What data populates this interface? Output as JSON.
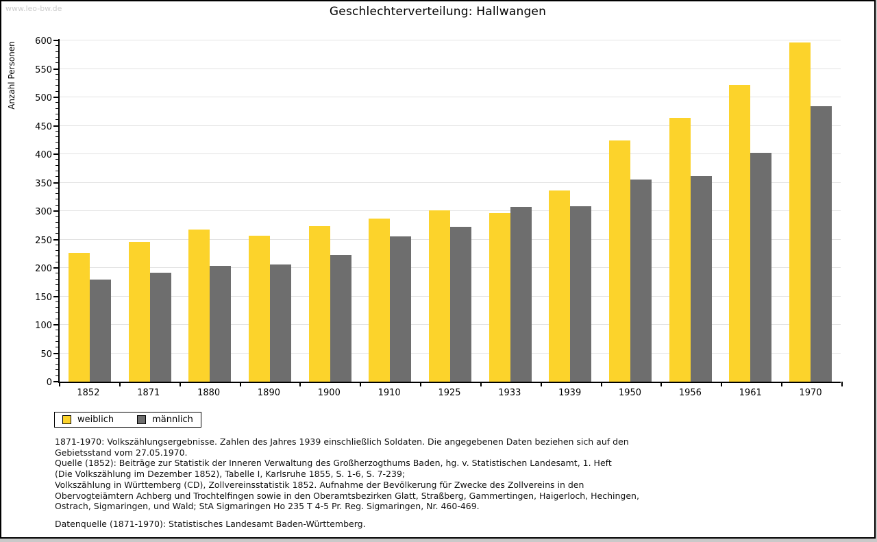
{
  "watermark": "www.leo-bw.de",
  "chart_data": {
    "type": "bar",
    "title": "Geschlechterverteilung: Hallwangen",
    "ylabel": "Anzahl Personen",
    "xlabel": "",
    "ylim": [
      0,
      600
    ],
    "y_major_step": 50,
    "y_minor_step": 10,
    "grid": true,
    "legend_position": "bottom-left",
    "categories": [
      "1852",
      "1871",
      "1880",
      "1890",
      "1900",
      "1910",
      "1925",
      "1933",
      "1939",
      "1950",
      "1956",
      "1961",
      "1970"
    ],
    "series": [
      {
        "name": "weiblich",
        "color": "#fcd32b",
        "values": [
          227,
          246,
          268,
          257,
          274,
          287,
          301,
          296,
          336,
          424,
          464,
          522,
          597
        ]
      },
      {
        "name": "männlich",
        "color": "#6e6e6e",
        "values": [
          180,
          192,
          204,
          206,
          223,
          255,
          272,
          307,
          308,
          356,
          361,
          402,
          484
        ]
      }
    ]
  },
  "footnotes": {
    "lines": [
      "1871-1970: Volkszählungsergebnisse. Zahlen des Jahres 1939 einschließlich Soldaten. Die angegebenen Daten beziehen sich auf den",
      "Gebietsstand vom 27.05.1970.",
      "Quelle (1852): Beiträge zur Statistik der Inneren Verwaltung des Großherzogthums Baden, hg. v. Statistischen Landesamt, 1. Heft",
      "(Die Volkszählung im Dezember 1852), Tabelle I, Karlsruhe 1855, S. 1-6, S. 7-239;",
      "Volkszählung in Württemberg (CD), Zollvereinsstatistik 1852. Aufnahme der Bevölkerung für Zwecke des Zollvereins in den",
      "Obervogteiämtern Achberg und Trochtelfingen sowie in den Oberamtsbezirken Glatt, Straßberg, Gammertingen, Haigerloch, Hechingen,",
      "Ostrach, Sigmaringen, und Wald; StA Sigmaringen Ho 235 T 4-5 Pr. Reg. Sigmaringen, Nr. 460-469."
    ],
    "source_line": "Datenquelle (1871-1970): Statistisches Landesamt Baden-Württemberg."
  }
}
